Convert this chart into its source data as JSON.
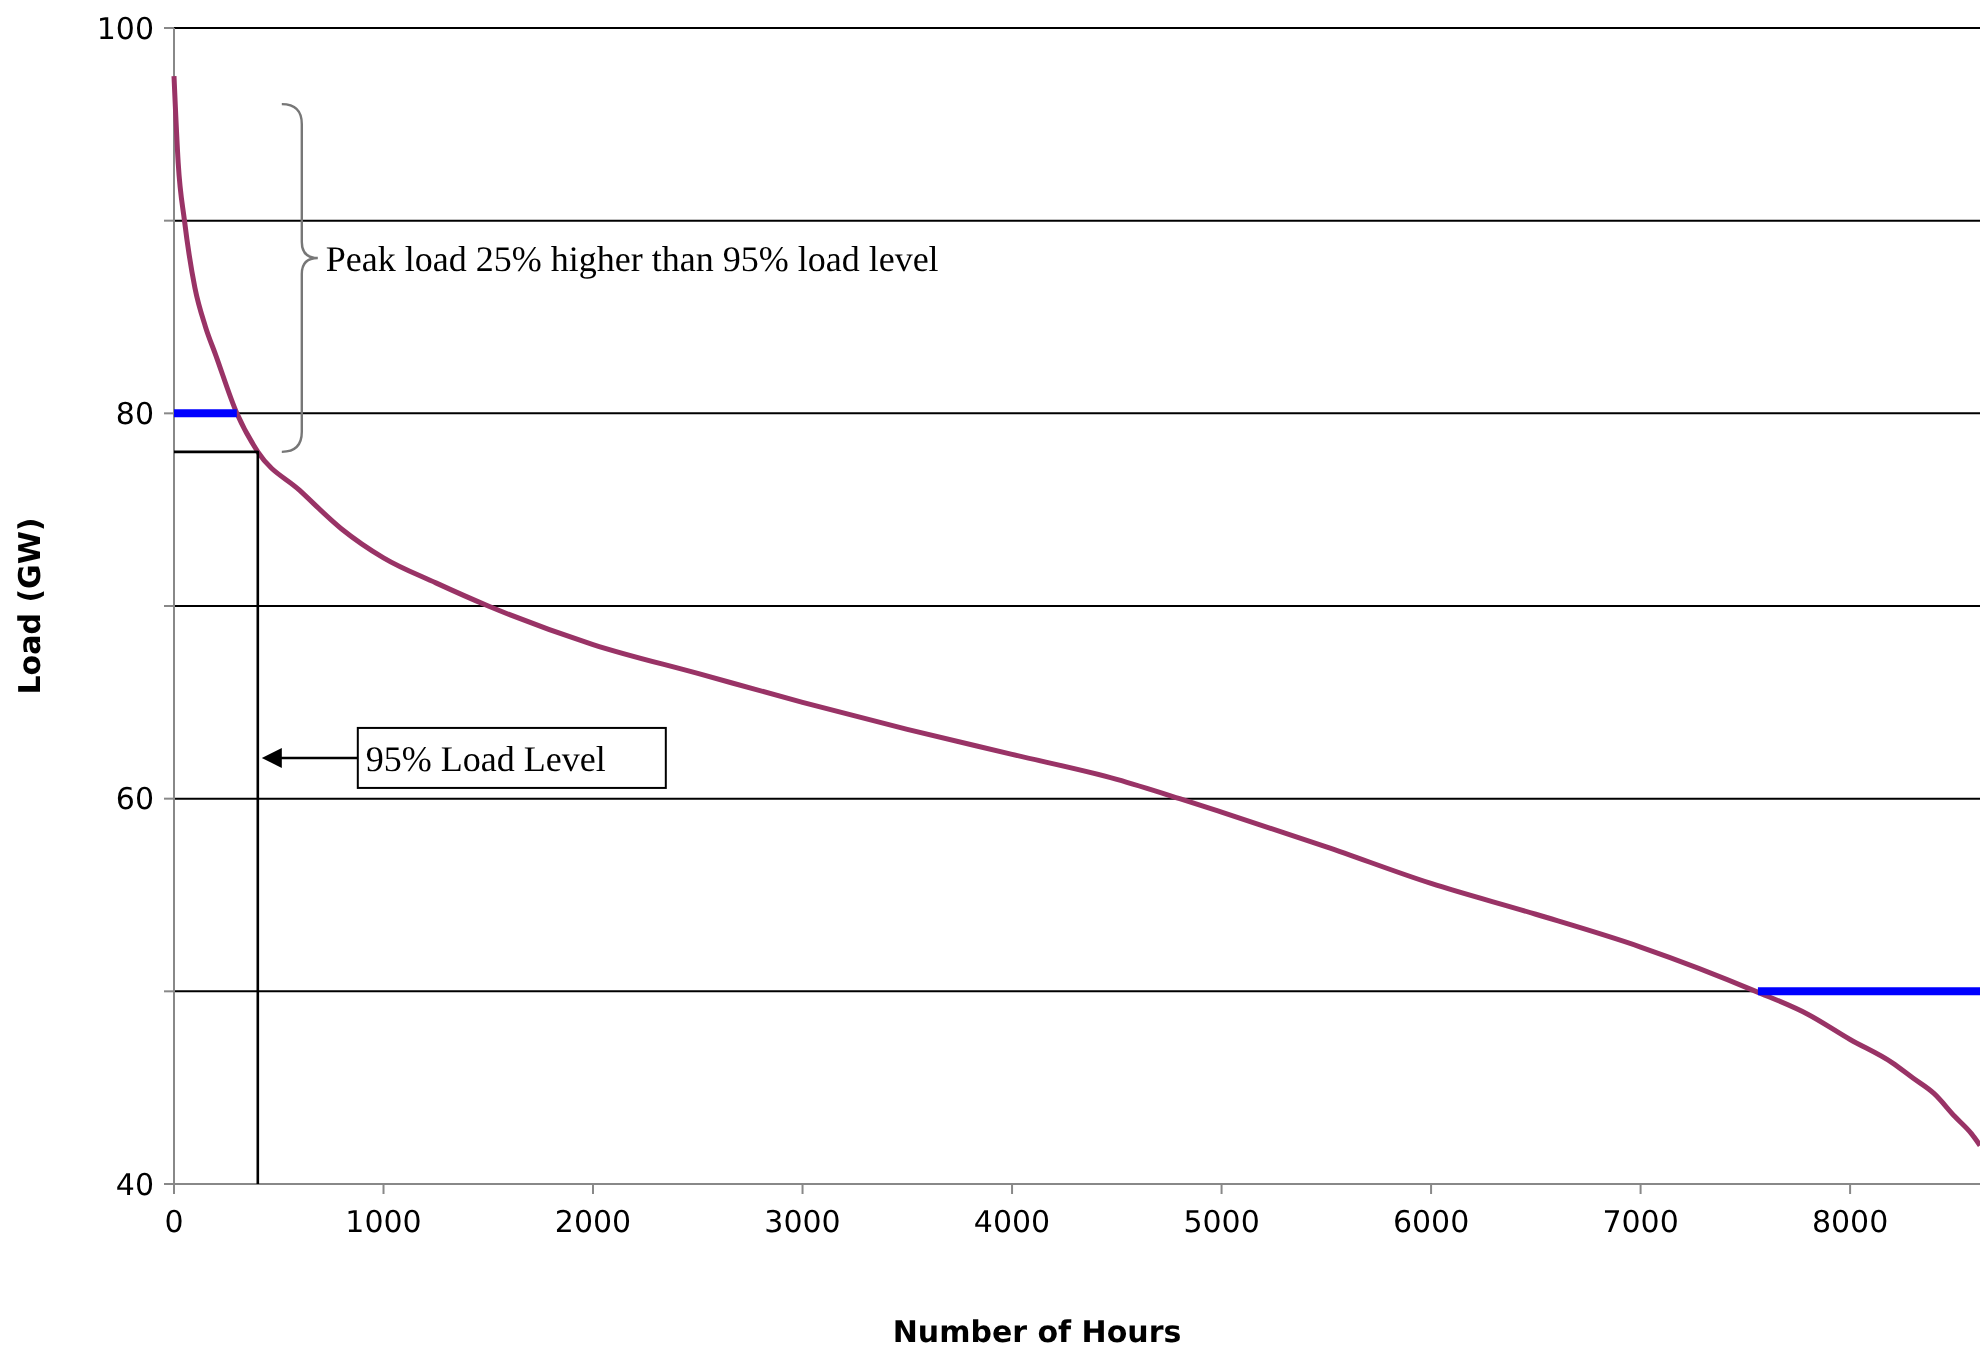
{
  "chart_data": {
    "type": "line",
    "xlabel": "Number of Hours",
    "ylabel": "Load (GW)",
    "xlim": [
      0,
      8620
    ],
    "xticks": [
      0,
      1000,
      2000,
      3000,
      4000,
      5000,
      6000,
      7000,
      8000
    ],
    "ylim": [
      40,
      100
    ],
    "yticks": [
      40,
      {
        "value": 50,
        "label": null
      },
      60,
      {
        "value": 70,
        "label": null
      },
      80,
      {
        "value": 90,
        "label": null
      },
      100
    ],
    "grid": "y",
    "marker": "none",
    "line_style": "solid",
    "series": [
      {
        "color": "#993366",
        "x": [
          0,
          20,
          50,
          100,
          150,
          200,
          300,
          400,
          600,
          800,
          1000,
          1250,
          1500,
          2000,
          2500,
          3000,
          3500,
          4000,
          4500,
          4800,
          5000,
          5500,
          6000,
          6500,
          7000,
          7550,
          7800,
          8000,
          8200,
          8300,
          8400,
          8500,
          8580,
          8620
        ],
        "values": [
          97.5,
          93,
          90,
          86.5,
          84.5,
          83,
          80,
          78,
          76,
          74,
          72.5,
          71.2,
          70,
          68,
          66.5,
          65,
          63.6,
          62.3,
          61,
          60,
          59.3,
          57.5,
          55.6,
          54,
          52.3,
          50,
          48.8,
          47.5,
          46.3,
          45.5,
          44.7,
          43.5,
          42.6,
          42
        ]
      },
      {
        "color": "#0000ff",
        "x": [
          0,
          300
        ],
        "values": [
          80,
          80
        ]
      },
      {
        "color": "#0000ff",
        "x": [
          7560,
          8620
        ],
        "values": [
          50,
          50
        ]
      },
      {
        "color": "#000000",
        "x": [
          0,
          400,
          400
        ],
        "values": [
          78,
          78,
          40
        ]
      }
    ],
    "annotations": [
      "Peak load 25% higher than 95% load level",
      "95% Load Level"
    ]
  }
}
